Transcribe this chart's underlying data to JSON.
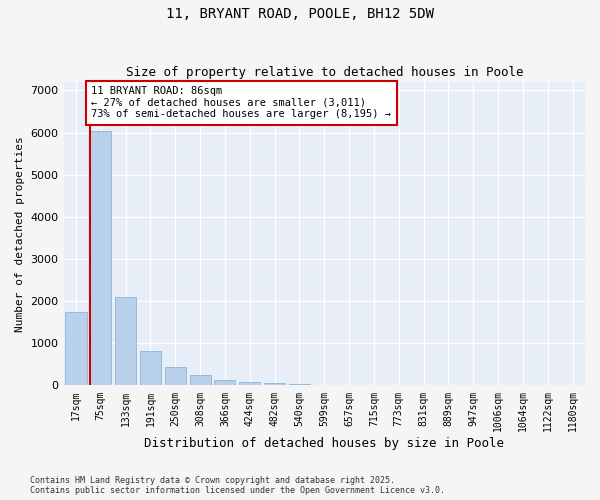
{
  "title_line1": "11, BRYANT ROAD, POOLE, BH12 5DW",
  "title_line2": "Size of property relative to detached houses in Poole",
  "xlabel": "Distribution of detached houses by size in Poole",
  "ylabel": "Number of detached properties",
  "categories": [
    "17sqm",
    "75sqm",
    "133sqm",
    "191sqm",
    "250sqm",
    "308sqm",
    "366sqm",
    "424sqm",
    "482sqm",
    "540sqm",
    "599sqm",
    "657sqm",
    "715sqm",
    "773sqm",
    "831sqm",
    "889sqm",
    "947sqm",
    "1006sqm",
    "1064sqm",
    "1122sqm",
    "1180sqm"
  ],
  "values": [
    1750,
    6050,
    2100,
    820,
    440,
    260,
    130,
    90,
    60,
    30,
    20,
    10,
    5,
    0,
    0,
    0,
    0,
    0,
    0,
    0,
    0
  ],
  "bar_color": "#b8d0ea",
  "bar_edge_color": "#7aaed6",
  "property_line_x": 0.575,
  "property_line_color": "#cc0000",
  "annotation_text": "11 BRYANT ROAD: 86sqm\n← 27% of detached houses are smaller (3,011)\n73% of semi-detached houses are larger (8,195) →",
  "annotation_box_color": "#cc0000",
  "ylim": [
    0,
    7200
  ],
  "yticks": [
    0,
    1000,
    2000,
    3000,
    4000,
    5000,
    6000,
    7000
  ],
  "background_color": "#e8eef8",
  "fig_background_color": "#f5f5f5",
  "footer_text": "Contains HM Land Registry data © Crown copyright and database right 2025.\nContains public sector information licensed under the Open Government Licence v3.0.",
  "title_fontsize": 10,
  "subtitle_fontsize": 9,
  "annotation_fontsize": 7.5
}
